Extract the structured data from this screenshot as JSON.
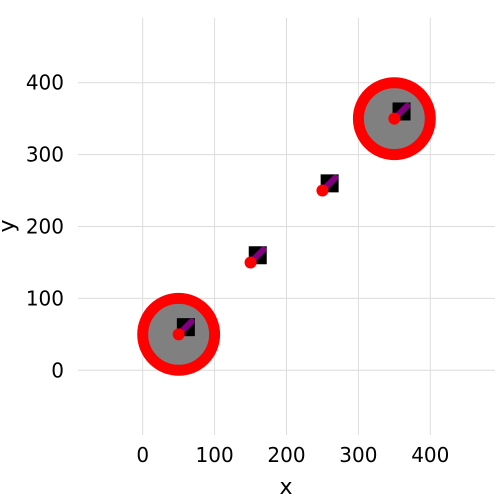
{
  "chart_data": {
    "type": "scatter",
    "title": "",
    "xlabel": "x",
    "ylabel": "y",
    "xlim": [
      -90,
      490
    ],
    "ylim": [
      -90,
      490
    ],
    "xticks": [
      0,
      100,
      200,
      300,
      400
    ],
    "yticks": [
      0,
      100,
      200,
      300,
      400
    ],
    "grid": true,
    "legend": "none",
    "highlight_circles": [
      {
        "x": 50,
        "y": 50,
        "radius": 50,
        "fill": "#808080",
        "stroke": "#ff0000"
      },
      {
        "x": 350,
        "y": 350,
        "radius": 50,
        "fill": "#808080",
        "stroke": "#ff0000"
      }
    ],
    "square_markers": [
      {
        "x": 60,
        "y": 60
      },
      {
        "x": 160,
        "y": 160
      },
      {
        "x": 260,
        "y": 260
      },
      {
        "x": 360,
        "y": 360
      }
    ],
    "segments": [
      {
        "x1": 52,
        "y1": 52,
        "x2": 68,
        "y2": 68
      },
      {
        "x1": 152,
        "y1": 152,
        "x2": 168,
        "y2": 168
      },
      {
        "x1": 252,
        "y1": 252,
        "x2": 268,
        "y2": 268
      },
      {
        "x1": 352,
        "y1": 352,
        "x2": 368,
        "y2": 368
      }
    ],
    "points": [
      {
        "x": 50,
        "y": 50
      },
      {
        "x": 150,
        "y": 150
      },
      {
        "x": 250,
        "y": 250
      },
      {
        "x": 350,
        "y": 350
      }
    ],
    "colors": {
      "point": "#ff0000",
      "ring": "#ff0000",
      "circle_fill": "#808080",
      "square": "#000000",
      "segment": "#800080",
      "grid": "#dcdcdc"
    }
  }
}
